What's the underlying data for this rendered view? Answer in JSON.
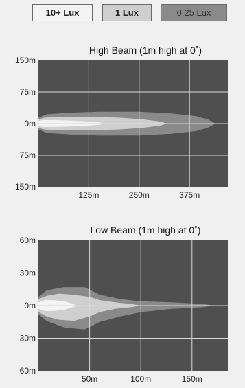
{
  "legend": [
    {
      "label": "10+ Lux",
      "color": "#f4f4f4"
    },
    {
      "label": "1 Lux",
      "color": "#cfcfcf"
    },
    {
      "label": "0.25 Lux",
      "color": "#8a8a8a"
    }
  ],
  "chart_data": [
    {
      "type": "area",
      "title": "High Beam (1m high at 0˚)",
      "xlabel": "",
      "ylabel": "",
      "xlim": [
        0,
        470
      ],
      "x_ticks": [
        125,
        250,
        375
      ],
      "x_tick_labels": [
        "125m",
        "250m",
        "375m"
      ],
      "ylim": [
        -150,
        150
      ],
      "y_ticks": [
        150,
        75,
        0,
        -75,
        -150
      ],
      "y_tick_labels": [
        "150m",
        "75m",
        "0m",
        "75m",
        "150m"
      ],
      "grid": true,
      "series": [
        {
          "name": "0.25 Lux",
          "x": [
            0,
            20,
            80,
            150,
            250,
            330,
            390,
            420,
            440
          ],
          "half_width": [
            14,
            22,
            26,
            28,
            28,
            24,
            18,
            10,
            0
          ]
        },
        {
          "name": "1 Lux",
          "x": [
            0,
            15,
            60,
            120,
            200,
            260,
            300,
            320
          ],
          "half_width": [
            10,
            14,
            16,
            16,
            14,
            10,
            5,
            0
          ]
        },
        {
          "name": "10+ Lux",
          "x": [
            0,
            10,
            40,
            80,
            120,
            150,
            165
          ],
          "half_width": [
            6,
            8,
            8,
            7,
            5,
            3,
            0
          ]
        }
      ]
    },
    {
      "type": "area",
      "title": "Low Beam (1m high at 0˚)",
      "xlabel": "",
      "ylabel": "",
      "xlim": [
        0,
        185
      ],
      "x_ticks": [
        50,
        100,
        150
      ],
      "x_tick_labels": [
        "50m",
        "100m",
        "150m"
      ],
      "ylim": [
        -60,
        60
      ],
      "y_ticks": [
        60,
        30,
        0,
        -30,
        -60
      ],
      "y_tick_labels": [
        "60m",
        "30m",
        "0m",
        "30m",
        "60m"
      ],
      "grid": true,
      "series": [
        {
          "name": "0.25 Lux",
          "x": [
            0,
            8,
            25,
            45,
            60,
            80,
            100,
            130,
            160,
            172
          ],
          "upper": [
            8,
            14,
            17,
            17,
            10,
            6,
            4,
            3,
            1.5,
            0
          ],
          "lower": [
            -8,
            -14,
            -20,
            -22,
            -15,
            -10,
            -6,
            -3,
            -1.5,
            0
          ]
        },
        {
          "name": "1 Lux",
          "x": [
            0,
            8,
            20,
            35,
            50,
            60,
            75,
            90,
            100
          ],
          "upper": [
            6,
            9,
            11,
            10,
            8,
            5,
            3,
            1.5,
            0
          ],
          "lower": [
            -6,
            -10,
            -13,
            -14,
            -10,
            -6,
            -3,
            -1.5,
            0
          ]
        },
        {
          "name": "10+ Lux",
          "x": [
            0,
            6,
            15,
            25,
            32,
            38
          ],
          "upper": [
            3,
            5,
            5,
            4,
            2,
            0
          ],
          "lower": [
            -3,
            -5,
            -5,
            -4,
            -2,
            0
          ]
        }
      ]
    }
  ]
}
